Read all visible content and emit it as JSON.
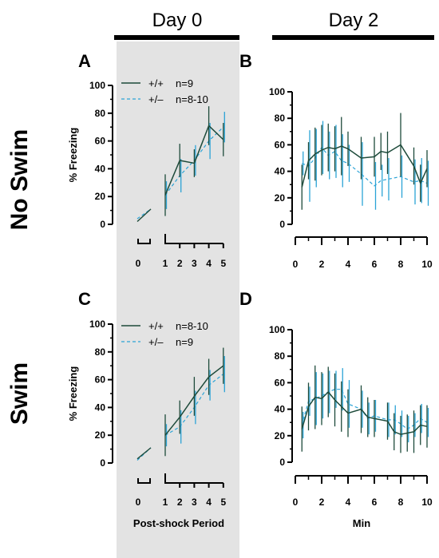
{
  "figure": {
    "day0_label": "Day 0",
    "day2_label": "Day 2",
    "row1_label": "No Swim",
    "row2_label": "Swim"
  },
  "colors": {
    "wt": "#1d4a3a",
    "het": "#2ba3d6",
    "shade": "#e3e3e3"
  },
  "chart_data": [
    {
      "panel": "A",
      "type": "line",
      "ylabel": "% Freezing",
      "xlabel": "",
      "ylim": [
        0,
        100
      ],
      "yticks": [
        "0",
        "20",
        "40",
        "60",
        "80",
        "100"
      ],
      "xticks": [
        "0",
        "1",
        "2",
        "3",
        "4",
        "5"
      ],
      "legend": [
        {
          "series": "+/+",
          "n": "n=9"
        },
        {
          "series": "+/–",
          "n": "n=8-10"
        }
      ],
      "baseline": {
        "x": [
          0,
          1
        ],
        "wt": [
          2,
          11
        ],
        "het": [
          4,
          11
        ]
      },
      "series": [
        {
          "name": "+/+",
          "x": [
            1,
            2,
            3,
            4,
            5
          ],
          "y": [
            21,
            46,
            44,
            71,
            61
          ],
          "err": [
            15,
            12,
            10,
            14,
            12
          ]
        },
        {
          "name": "+/–",
          "x": [
            1,
            2,
            3,
            4,
            5
          ],
          "y": [
            21,
            35,
            46,
            60,
            70
          ],
          "err": [
            10,
            12,
            11,
            13,
            11
          ]
        }
      ]
    },
    {
      "panel": "B",
      "type": "line",
      "ylabel": "",
      "xlabel": "",
      "xlim": [
        0,
        10
      ],
      "ylim": [
        0,
        100
      ],
      "yticks": [
        "0",
        "20",
        "40",
        "60",
        "80",
        "100"
      ],
      "xticks": [
        "0",
        "2",
        "4",
        "6",
        "8",
        "10"
      ],
      "series": [
        {
          "name": "+/+",
          "x": [
            0.5,
            1,
            1.5,
            2,
            2.5,
            3,
            3.5,
            4,
            5,
            6,
            6.5,
            7,
            8,
            9,
            9.5,
            10
          ],
          "y": [
            28,
            48,
            53,
            56,
            58,
            57,
            59,
            57,
            50,
            51,
            55,
            54,
            60,
            44,
            31,
            42
          ],
          "err": [
            17,
            14,
            20,
            19,
            18,
            17,
            22,
            13,
            16,
            15,
            14,
            16,
            24,
            14,
            14,
            14
          ]
        },
        {
          "name": "+/–",
          "x": [
            0.5,
            1,
            1.5,
            2,
            2.5,
            3,
            3.5,
            4,
            5,
            6,
            6.5,
            7,
            8,
            9,
            9.5,
            10
          ],
          "y": [
            46,
            44,
            50,
            58,
            52,
            55,
            48,
            46,
            38,
            29,
            33,
            34,
            36,
            32,
            33,
            31
          ],
          "err": [
            9,
            27,
            22,
            20,
            18,
            20,
            20,
            14,
            24,
            18,
            12,
            16,
            16,
            17,
            17,
            17
          ]
        }
      ]
    },
    {
      "panel": "C",
      "type": "line",
      "ylabel": "% Freezing",
      "xlabel": "Post-shock Period",
      "ylim": [
        0,
        100
      ],
      "yticks": [
        "0",
        "20",
        "40",
        "60",
        "80",
        "100"
      ],
      "xticks": [
        "0",
        "1",
        "2",
        "3",
        "4",
        "5"
      ],
      "legend": [
        {
          "series": "+/+",
          "n": "n=8-10"
        },
        {
          "series": "+/–",
          "n": "n=9"
        }
      ],
      "baseline": {
        "x": [
          0,
          1
        ],
        "wt": [
          3,
          11
        ],
        "het": [
          2,
          11
        ]
      },
      "series": [
        {
          "name": "+/+",
          "x": [
            1,
            2,
            3,
            4,
            5
          ],
          "y": [
            20,
            33,
            48,
            62,
            70
          ],
          "err": [
            15,
            12,
            14,
            13,
            13
          ]
        },
        {
          "name": "+/–",
          "x": [
            1,
            2,
            3,
            4,
            5
          ],
          "y": [
            20,
            26,
            40,
            56,
            64
          ],
          "err": [
            8,
            12,
            12,
            11,
            13
          ]
        }
      ]
    },
    {
      "panel": "D",
      "type": "line",
      "ylabel": "",
      "xlabel": "Min",
      "xlim": [
        0,
        10
      ],
      "ylim": [
        0,
        100
      ],
      "yticks": [
        "0",
        "20",
        "40",
        "60",
        "80",
        "100"
      ],
      "xticks": [
        "0",
        "2",
        "4",
        "6",
        "8",
        "10"
      ],
      "series": [
        {
          "name": "+/+",
          "x": [
            0.5,
            1,
            1.5,
            2,
            2.5,
            3,
            3.5,
            4,
            5,
            5.5,
            6,
            7,
            7.5,
            8,
            8.5,
            9,
            9.5,
            10
          ],
          "y": [
            25,
            42,
            49,
            48,
            53,
            47,
            42,
            37,
            40,
            34,
            33,
            31,
            23,
            21,
            22,
            23,
            28,
            27
          ],
          "err": [
            17,
            18,
            24,
            20,
            19,
            20,
            19,
            18,
            18,
            15,
            14,
            14,
            14,
            14,
            14,
            16,
            15,
            16
          ]
        },
        {
          "name": "+/–",
          "x": [
            0.5,
            1,
            1.5,
            2,
            2.5,
            3,
            3.5,
            4,
            5,
            5.5,
            6,
            7,
            7.5,
            8,
            8.5,
            9,
            9.5,
            10
          ],
          "y": [
            28,
            46,
            48,
            50,
            53,
            55,
            55,
            44,
            40,
            33,
            35,
            32,
            32,
            29,
            25,
            28,
            33,
            30
          ],
          "err": [
            10,
            11,
            20,
            17,
            16,
            14,
            16,
            18,
            14,
            12,
            12,
            13,
            11,
            10,
            10,
            9,
            11,
            11
          ]
        }
      ]
    }
  ]
}
